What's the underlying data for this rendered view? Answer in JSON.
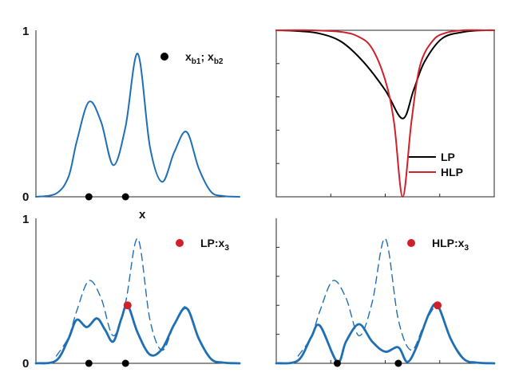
{
  "colors": {
    "blue": "#1f6fb5",
    "red": "#d0202a",
    "black": "#000000",
    "axis": "#262626"
  },
  "chart_data": [
    {
      "id": "top-left",
      "type": "line",
      "ylim": [
        0,
        1
      ],
      "xlim": [
        0,
        1
      ],
      "ytick_labels": [
        "0",
        "1"
      ],
      "xlabel": "x",
      "series": [
        {
          "style": "solid",
          "x": [
            0,
            0.1,
            0.16,
            0.2,
            0.26,
            0.32,
            0.38,
            0.44,
            0.5,
            0.56,
            0.62,
            0.68,
            0.74,
            0.8,
            0.86,
            0.92,
            1.0
          ],
          "y": [
            0.0,
            0.02,
            0.12,
            0.33,
            0.57,
            0.45,
            0.19,
            0.42,
            0.86,
            0.3,
            0.09,
            0.27,
            0.39,
            0.17,
            0.03,
            0.005,
            0.0
          ]
        }
      ],
      "bottom_points": [
        0.26,
        0.44
      ],
      "legend": {
        "text": "x",
        "sub1": "b1",
        "sep": "; x",
        "sub2": "b2",
        "marker_color": "#000000"
      }
    },
    {
      "id": "top-right",
      "type": "line",
      "ylim": [
        0,
        1
      ],
      "xlim": [
        0,
        1
      ],
      "series": [
        {
          "name": "LP",
          "color": "#000000",
          "x": [
            0,
            0.1,
            0.2,
            0.3,
            0.4,
            0.5,
            0.58,
            0.63,
            0.68,
            0.76,
            0.86,
            0.96,
            1.0
          ],
          "y": [
            1.0,
            0.995,
            0.98,
            0.93,
            0.81,
            0.64,
            0.47,
            0.64,
            0.81,
            0.95,
            0.99,
            1.0,
            1.0
          ]
        },
        {
          "name": "HLP",
          "color": "#d0202a",
          "x": [
            0,
            0.15,
            0.3,
            0.38,
            0.44,
            0.5,
            0.54,
            0.58,
            0.62,
            0.66,
            0.72,
            0.78,
            0.86,
            0.96,
            1.0
          ],
          "y": [
            1.0,
            1.0,
            0.99,
            0.96,
            0.89,
            0.7,
            0.45,
            0.0,
            0.45,
            0.79,
            0.94,
            0.985,
            1.0,
            1.0,
            1.0
          ]
        }
      ],
      "legend": [
        "LP",
        "HLP"
      ]
    },
    {
      "id": "bottom-left",
      "type": "line",
      "ylim": [
        0,
        1
      ],
      "xlim": [
        0,
        1
      ],
      "ytick_labels": [
        "0",
        "1"
      ],
      "series": [
        {
          "style": "dashed",
          "x": [
            0.1,
            0.16,
            0.2,
            0.26,
            0.32,
            0.38,
            0.44,
            0.5,
            0.56,
            0.62,
            0.68,
            0.74,
            0.8,
            0.86
          ],
          "y": [
            0.05,
            0.18,
            0.36,
            0.57,
            0.45,
            0.19,
            0.42,
            0.86,
            0.3,
            0.09,
            0.27,
            0.39,
            0.17,
            0.03
          ]
        },
        {
          "style": "solid",
          "x": [
            0,
            0.1,
            0.16,
            0.2,
            0.25,
            0.3,
            0.34,
            0.38,
            0.42,
            0.45,
            0.5,
            0.56,
            0.62,
            0.68,
            0.74,
            0.8,
            0.86,
            0.92,
            1.0
          ],
          "y": [
            0.0,
            0.02,
            0.17,
            0.3,
            0.25,
            0.31,
            0.23,
            0.15,
            0.31,
            0.4,
            0.21,
            0.06,
            0.1,
            0.27,
            0.38,
            0.17,
            0.03,
            0.005,
            0.0
          ]
        }
      ],
      "bottom_points": [
        0.26,
        0.44
      ],
      "highlight": {
        "x": 0.45,
        "y": 0.4,
        "color": "#d0202a"
      },
      "legend": {
        "text": "LP:x",
        "sub": "3",
        "marker_color": "#d0202a"
      }
    },
    {
      "id": "bottom-right",
      "type": "line",
      "ylim": [
        0,
        1
      ],
      "xlim": [
        0,
        1
      ],
      "series": [
        {
          "style": "dashed",
          "x": [
            0.1,
            0.16,
            0.2,
            0.26,
            0.32,
            0.38,
            0.44,
            0.5,
            0.56,
            0.62,
            0.68,
            0.74,
            0.8,
            0.86
          ],
          "y": [
            0.05,
            0.18,
            0.36,
            0.57,
            0.45,
            0.19,
            0.42,
            0.86,
            0.3,
            0.09,
            0.27,
            0.39,
            0.17,
            0.03
          ]
        },
        {
          "style": "solid",
          "x": [
            0,
            0.1,
            0.16,
            0.2,
            0.28,
            0.32,
            0.38,
            0.44,
            0.5,
            0.56,
            0.6,
            0.64,
            0.7,
            0.74,
            0.8,
            0.86,
            0.92,
            1.0
          ],
          "y": [
            0.0,
            0.02,
            0.18,
            0.26,
            0.01,
            0.15,
            0.27,
            0.15,
            0.08,
            0.11,
            0.01,
            0.1,
            0.34,
            0.4,
            0.17,
            0.03,
            0.005,
            0.0
          ]
        }
      ],
      "bottom_points": [
        0.28,
        0.56
      ],
      "highlight": {
        "x": 0.74,
        "y": 0.4,
        "color": "#d0202a"
      },
      "legend": {
        "text": "HLP:x",
        "sub": "3",
        "marker_color": "#d0202a"
      }
    }
  ]
}
